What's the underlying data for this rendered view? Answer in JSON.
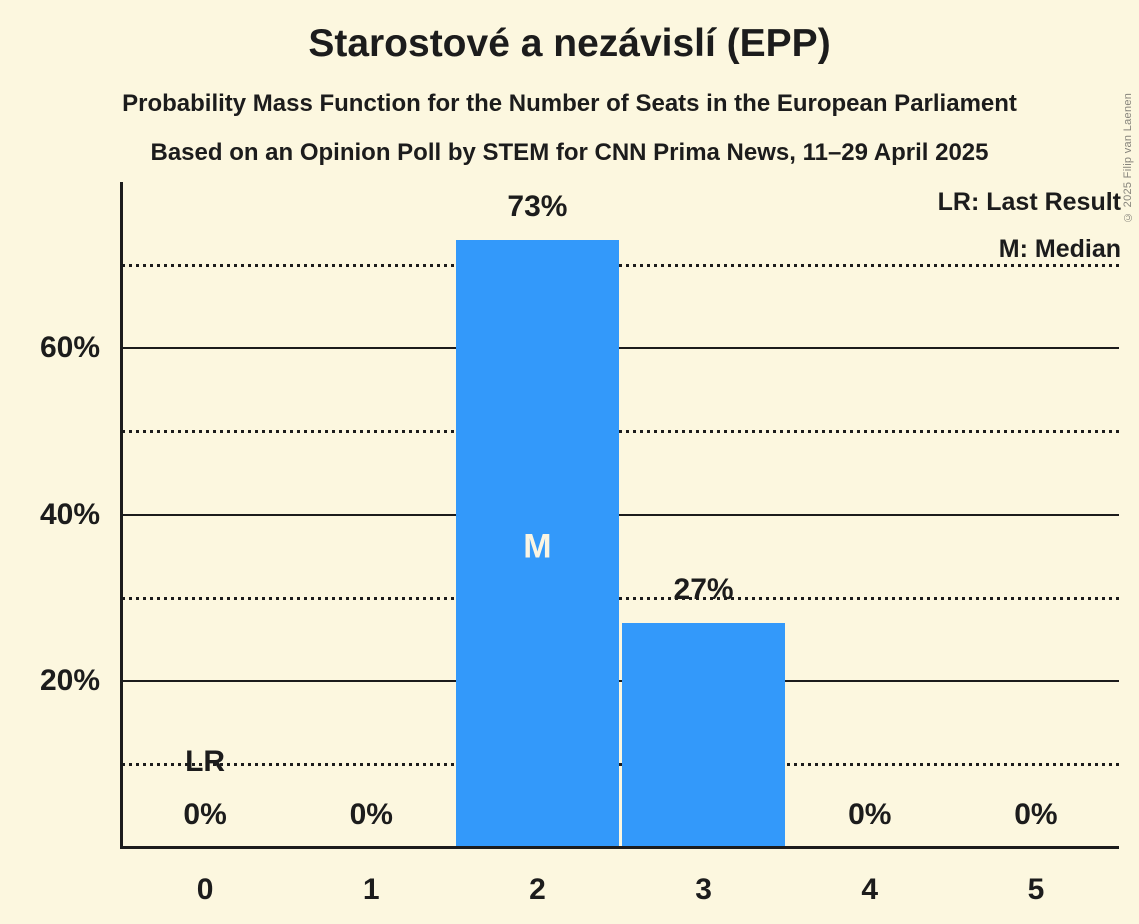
{
  "title": "Starostové a nezávislí (EPP)",
  "subtitles": [
    "Probability Mass Function for the Number of Seats in the European Parliament",
    "Based on an Opinion Poll by STEM for CNN Prima News, 11–29 April 2025"
  ],
  "copyright": "© 2025 Filip van Laenen",
  "legend": {
    "last_result": "LR: Last Result",
    "median": "M: Median"
  },
  "colors": {
    "background": "#FCF7DF",
    "bar": "#3399FA",
    "text": "#1C1C1C",
    "bar_label_text": "#FAF5E3",
    "copyright_text": "#87857C",
    "gridline": "#1C1C1C",
    "axis": "#1C1C1C"
  },
  "chart_data": {
    "type": "bar",
    "title": "Starostové a nezávislí (EPP)",
    "categories": [
      "0",
      "1",
      "2",
      "3",
      "4",
      "5"
    ],
    "values": [
      0,
      0,
      73,
      27,
      0,
      0
    ],
    "value_labels": [
      "0%",
      "0%",
      "73%",
      "27%",
      "0%",
      "0%"
    ],
    "xlabel": "",
    "ylabel": "",
    "ylim": [
      0,
      80
    ],
    "yticks": [
      20,
      40,
      60
    ],
    "ytick_labels": [
      "20%",
      "40%",
      "60%"
    ],
    "solid_gridlines": [
      20,
      40,
      60
    ],
    "dotted_gridlines": [
      10,
      30,
      50,
      70
    ],
    "grid": "horizontal",
    "legend_position": "top-right",
    "median_seat": "2",
    "median_marker": "M",
    "last_result_seat": "0",
    "last_result_marker": "LR",
    "last_result_y": 10
  }
}
